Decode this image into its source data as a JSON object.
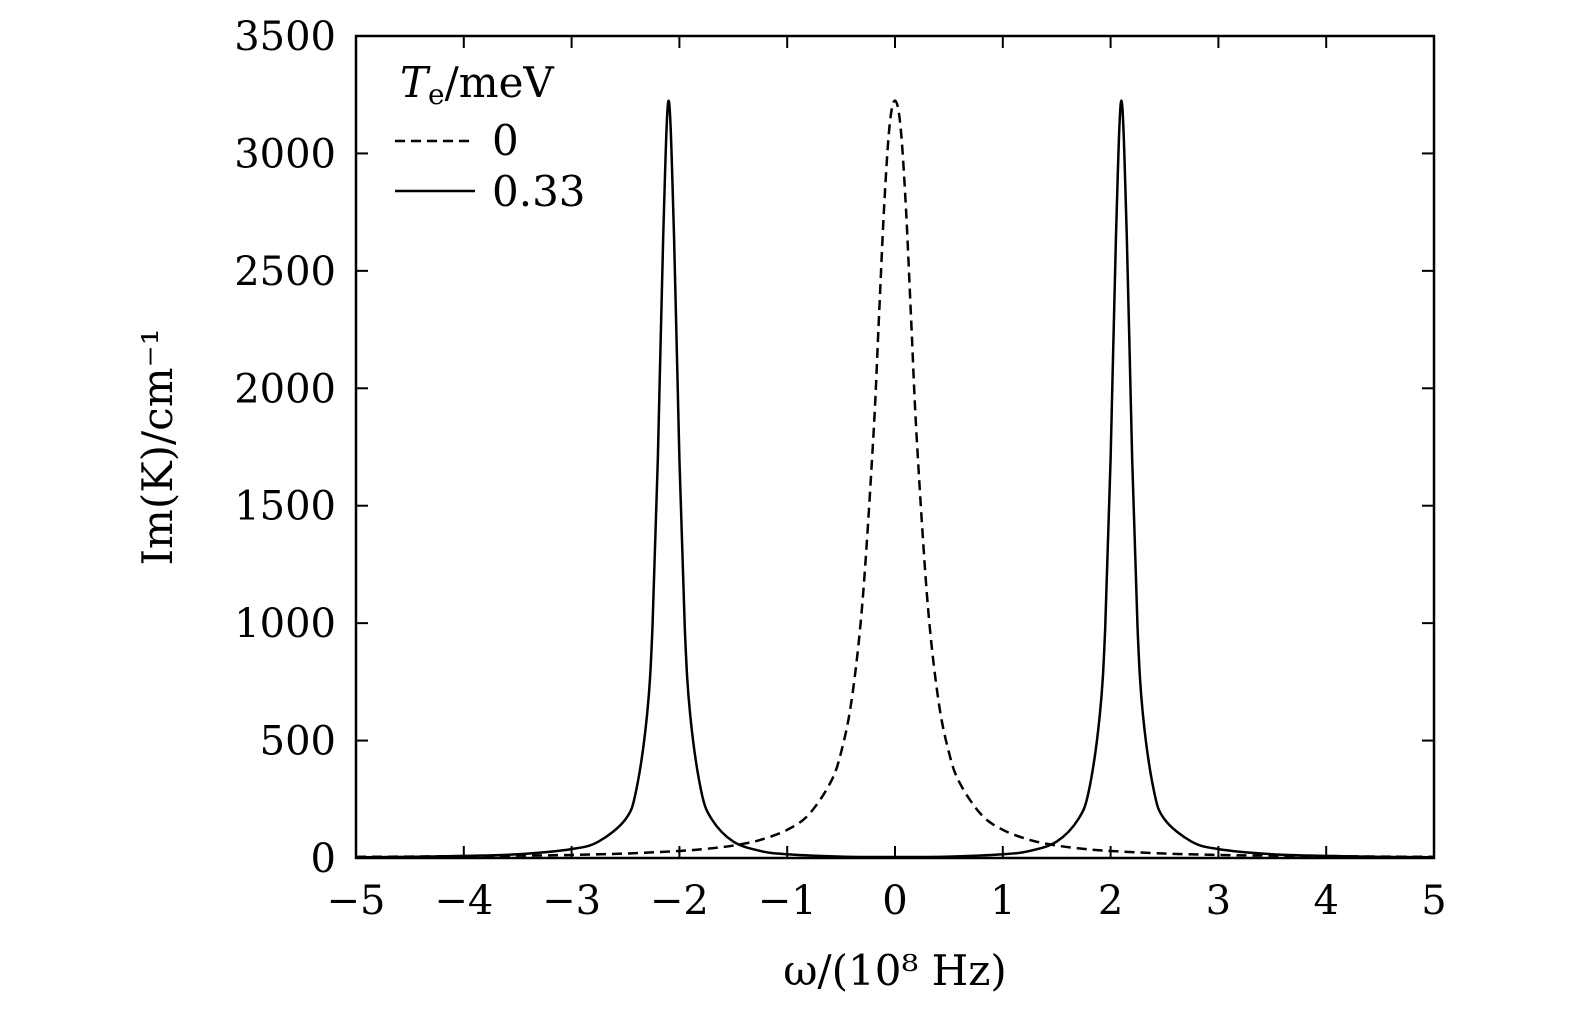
{
  "chart_data": {
    "type": "line",
    "xlabel": "ω/(10⁸ Hz)",
    "ylabel": "Im(K)/cm⁻¹",
    "xlim": [
      -5,
      5
    ],
    "ylim": [
      0,
      3500
    ],
    "x_ticks": [
      -5,
      -4,
      -3,
      -2,
      -1,
      0,
      1,
      2,
      3,
      4,
      5
    ],
    "x_tick_labels": [
      "−5",
      "−4",
      "−3",
      "−2",
      "−1",
      "0",
      "1",
      "2",
      "3",
      "4",
      "5"
    ],
    "y_ticks": [
      0,
      500,
      1000,
      1500,
      2000,
      2500,
      3000,
      3500
    ],
    "y_tick_labels": [
      "0",
      "500",
      "1000",
      "1500",
      "2000",
      "2500",
      "3000",
      "3500"
    ],
    "legend": {
      "title": "Te/meV",
      "title_main": "T",
      "title_sub": "e",
      "title_rest": "/meV",
      "placement": "top-left"
    },
    "series": [
      {
        "name": "0",
        "style": "dashed",
        "color": "#000000",
        "x": [
          -5,
          -4.5,
          -4,
          -3.5,
          -3,
          -2.5,
          -2,
          -1.75,
          -1.5,
          -1.25,
          -1,
          -0.8,
          -0.6,
          -0.5,
          -0.4,
          -0.3,
          -0.2,
          -0.15,
          -0.1,
          -0.05,
          0,
          0.05,
          0.1,
          0.15,
          0.2,
          0.3,
          0.4,
          0.5,
          0.6,
          0.8,
          1,
          1.25,
          1.5,
          1.75,
          2,
          2.5,
          3,
          3.5,
          4,
          4.5,
          5
        ],
        "y": [
          5,
          6,
          8,
          10,
          13,
          19,
          30,
          39,
          53,
          77,
          120,
          185,
          320,
          450,
          680,
          1100,
          1800,
          2290,
          2780,
          3120,
          3225,
          3120,
          2780,
          2290,
          1800,
          1100,
          680,
          450,
          320,
          185,
          120,
          77,
          53,
          39,
          30,
          19,
          13,
          10,
          8,
          6,
          5
        ]
      },
      {
        "name": "0.33",
        "style": "solid",
        "color": "#000000",
        "x": [
          -5,
          -4.5,
          -4,
          -3.5,
          -3,
          -2.75,
          -2.5,
          -2.4,
          -2.3,
          -2.25,
          -2.2,
          -2.15,
          -2.1,
          -2.05,
          -2,
          -1.95,
          -1.9,
          -1.8,
          -1.7,
          -1.5,
          -1.25,
          -1,
          -0.5,
          0,
          0.5,
          1,
          1.25,
          1.5,
          1.7,
          1.8,
          1.9,
          1.95,
          2,
          2.05,
          2.1,
          2.15,
          2.2,
          2.25,
          2.3,
          2.4,
          2.5,
          2.75,
          3,
          3.5,
          4,
          4.5,
          5
        ],
        "y": [
          3,
          5,
          9,
          16,
          38,
          70,
          165,
          290,
          610,
          980,
          1700,
          2650,
          3225,
          2650,
          1700,
          980,
          610,
          290,
          165,
          70,
          30,
          16,
          6,
          4,
          6,
          16,
          30,
          70,
          165,
          290,
          610,
          980,
          1700,
          2650,
          3225,
          2650,
          1700,
          980,
          610,
          290,
          165,
          70,
          38,
          16,
          9,
          5,
          3
        ]
      }
    ]
  }
}
